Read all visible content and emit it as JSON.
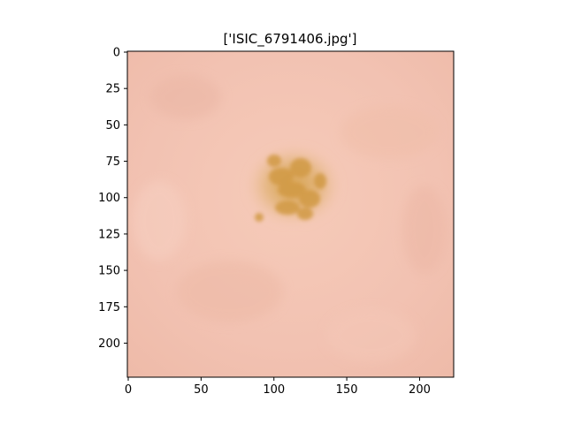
{
  "figure": {
    "title": "['ISIC_6791406.jpg']"
  },
  "image": {
    "subject": "dermoscopic skin image with a small tan-yellow lesion",
    "skin_color": "#f3c4b6",
    "lesion_color": "#d8a85a"
  },
  "axes": {
    "x_ticks": [
      0,
      50,
      100,
      150,
      200
    ],
    "y_ticks": [
      0,
      25,
      50,
      75,
      100,
      125,
      150,
      175,
      200
    ],
    "x_range": [
      0,
      224
    ],
    "y_range": [
      0,
      224
    ]
  }
}
